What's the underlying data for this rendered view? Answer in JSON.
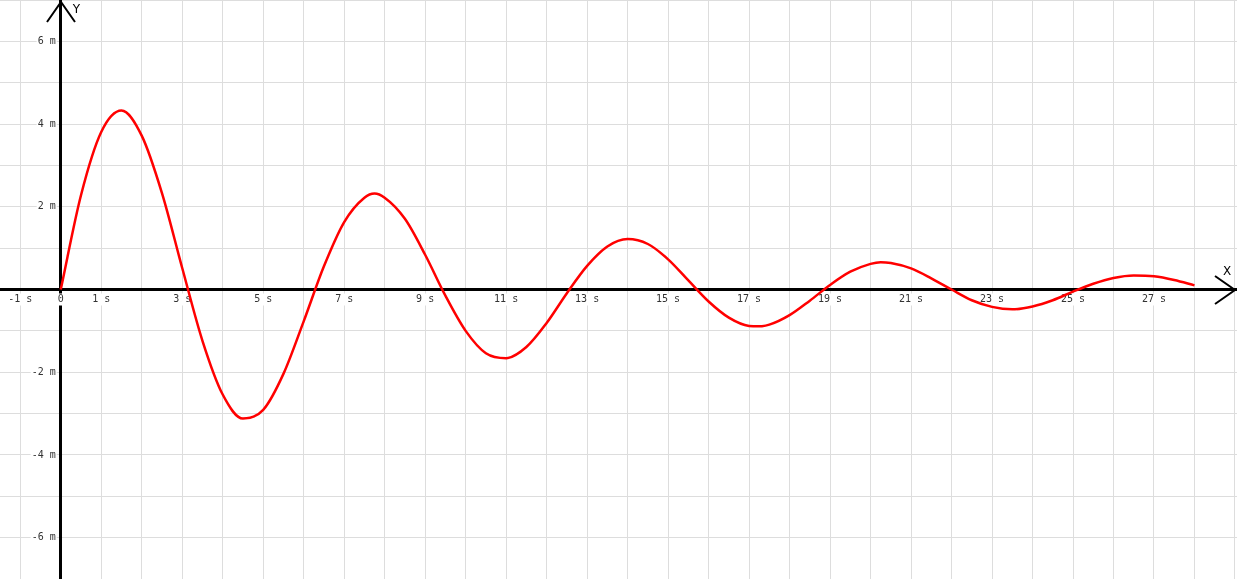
{
  "chart_data": {
    "type": "line",
    "xlabel": "X",
    "ylabel": "Y",
    "x": [
      0,
      0.5,
      1,
      1.5,
      2,
      2.5,
      3,
      3.5,
      4,
      4.5,
      5,
      5.5,
      6,
      6.5,
      7,
      7.5,
      7.75,
      8,
      8.5,
      9,
      9.5,
      10,
      10.5,
      11,
      11.5,
      12,
      12.5,
      13,
      13.5,
      14,
      14.5,
      15,
      15.5,
      16,
      16.5,
      17,
      17.25,
      17.5,
      18,
      18.5,
      19,
      19.5,
      20,
      20.25,
      20.5,
      21,
      21.5,
      22,
      22.5,
      23,
      23.5,
      24,
      24.5,
      25,
      25.5,
      26,
      26.5,
      27,
      27.5,
      28
    ],
    "series": [
      {
        "color": "#ff0000",
        "values": [
          0,
          2.28,
          3.81,
          4.33,
          3.72,
          2.33,
          0.52,
          -1.24,
          -2.54,
          -3.12,
          -2.91,
          -2.04,
          -0.77,
          0.56,
          1.63,
          2.22,
          2.32,
          2.22,
          1.71,
          0.84,
          -0.15,
          -1.0,
          -1.54,
          -1.66,
          -1.39,
          -0.81,
          -0.09,
          0.57,
          1.04,
          1.22,
          1.1,
          0.73,
          0.22,
          -0.29,
          -0.68,
          -0.88,
          -0.89,
          -0.85,
          -0.62,
          -0.27,
          0.11,
          0.43,
          0.62,
          0.66,
          0.64,
          0.51,
          0.27,
          0,
          -0.26,
          -0.42,
          -0.48,
          -0.41,
          -0.26,
          -0.05,
          0.14,
          0.28,
          0.34,
          0.32,
          0.23,
          0.1
        ]
      }
    ],
    "xlim": [
      -1.5,
      29.05
    ],
    "ylim": [
      -7,
      7
    ],
    "xticks": [
      {
        "value": -1,
        "label": "-1 s"
      },
      {
        "value": 0,
        "label": "0"
      },
      {
        "value": 1,
        "label": "1 s"
      },
      {
        "value": 2,
        "label": null
      },
      {
        "value": 3,
        "label": "3 s"
      },
      {
        "value": 4,
        "label": null
      },
      {
        "value": 5,
        "label": "5 s"
      },
      {
        "value": 6,
        "label": null
      },
      {
        "value": 7,
        "label": "7 s"
      },
      {
        "value": 8,
        "label": null
      },
      {
        "value": 9,
        "label": "9 s"
      },
      {
        "value": 10,
        "label": null
      },
      {
        "value": 11,
        "label": "11 s"
      },
      {
        "value": 12,
        "label": null
      },
      {
        "value": 13,
        "label": "13 s"
      },
      {
        "value": 14,
        "label": null
      },
      {
        "value": 15,
        "label": "15 s"
      },
      {
        "value": 16,
        "label": null
      },
      {
        "value": 17,
        "label": "17 s"
      },
      {
        "value": 18,
        "label": null
      },
      {
        "value": 19,
        "label": "19 s"
      },
      {
        "value": 20,
        "label": null
      },
      {
        "value": 21,
        "label": "21 s"
      },
      {
        "value": 22,
        "label": null
      },
      {
        "value": 23,
        "label": "23 s"
      },
      {
        "value": 24,
        "label": null
      },
      {
        "value": 25,
        "label": "25 s"
      },
      {
        "value": 26,
        "label": null
      },
      {
        "value": 27,
        "label": "27 s"
      },
      {
        "value": 28,
        "label": null
      },
      {
        "value": 29,
        "label": null
      }
    ],
    "yticks": [
      {
        "value": -7,
        "label": null
      },
      {
        "value": -6,
        "label": "-6 m"
      },
      {
        "value": -5,
        "label": null
      },
      {
        "value": -4,
        "label": "-4 m"
      },
      {
        "value": -3,
        "label": null
      },
      {
        "value": -2,
        "label": "-2 m"
      },
      {
        "value": -1,
        "label": null
      },
      {
        "value": 0,
        "label": null
      },
      {
        "value": 1,
        "label": null
      },
      {
        "value": 2,
        "label": "2 m"
      },
      {
        "value": 3,
        "label": null
      },
      {
        "value": 4,
        "label": "4 m"
      },
      {
        "value": 5,
        "label": null
      },
      {
        "value": 6,
        "label": "6 m"
      },
      {
        "value": 7,
        "label": null
      }
    ],
    "grid": true,
    "legend": false,
    "marker": "none",
    "line_style": "solid"
  }
}
